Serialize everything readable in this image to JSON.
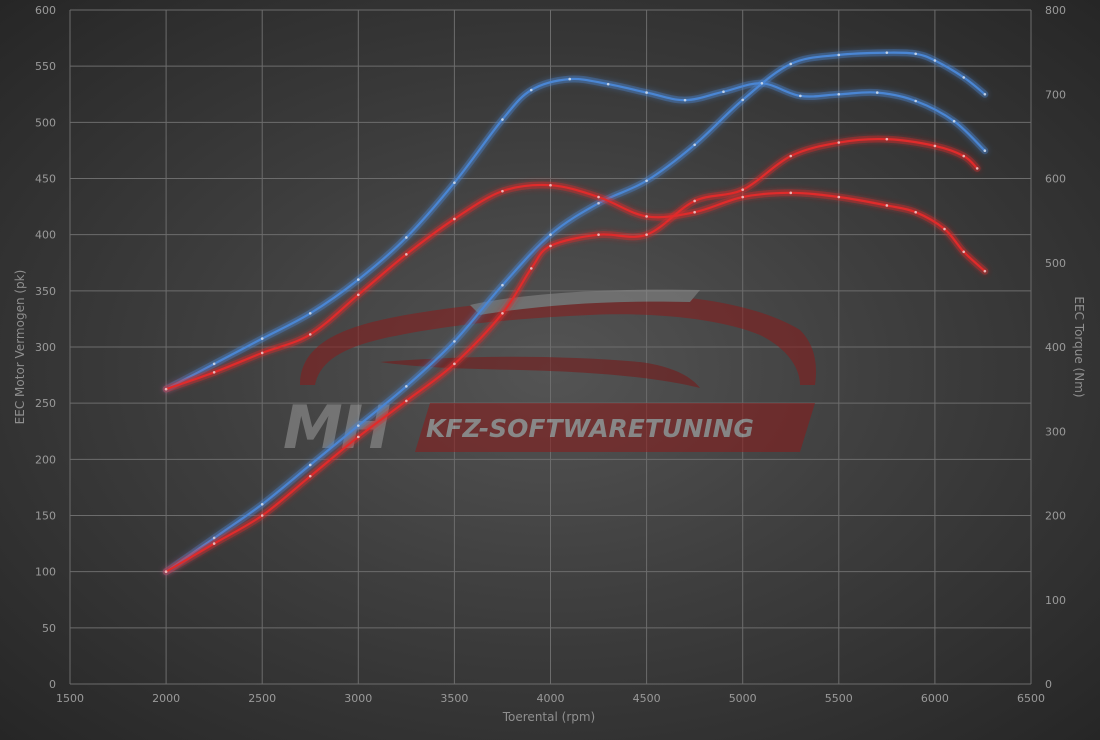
{
  "chart_data": {
    "type": "line",
    "xlabel": "Toerental (rpm)",
    "ylabel_left": "EEC Motor Vermogen (pk)",
    "ylabel_right": "EEC Torque (Nm)",
    "xlim": [
      1500,
      6500
    ],
    "ylim_left": [
      0,
      600
    ],
    "ylim_right": [
      0,
      800
    ],
    "x_ticks": [
      1500,
      2000,
      2500,
      3000,
      3500,
      4000,
      4500,
      5000,
      5500,
      6000,
      6500
    ],
    "y_left_ticks": [
      0,
      50,
      100,
      150,
      200,
      250,
      300,
      350,
      400,
      450,
      500,
      550,
      600
    ],
    "y_right_ticks": [
      0,
      100,
      200,
      300,
      400,
      500,
      600,
      700,
      800
    ],
    "grid": true,
    "series": [
      {
        "axis": "left",
        "color": "#4a86d4",
        "points": [
          [
            2000,
            100
          ],
          [
            2250,
            130
          ],
          [
            2500,
            160
          ],
          [
            2750,
            195
          ],
          [
            3000,
            230
          ],
          [
            3250,
            265
          ],
          [
            3500,
            305
          ],
          [
            3750,
            355
          ],
          [
            4000,
            400
          ],
          [
            4250,
            428
          ],
          [
            4500,
            448
          ],
          [
            4750,
            480
          ],
          [
            5000,
            520
          ],
          [
            5250,
            552
          ],
          [
            5500,
            560
          ],
          [
            5750,
            562
          ],
          [
            5900,
            561
          ],
          [
            6000,
            555
          ],
          [
            6150,
            540
          ],
          [
            6260,
            525
          ]
        ]
      },
      {
        "axis": "right",
        "color": "#4a86d4",
        "points": [
          [
            2000,
            350
          ],
          [
            2250,
            380
          ],
          [
            2500,
            410
          ],
          [
            2750,
            440
          ],
          [
            3000,
            480
          ],
          [
            3250,
            530
          ],
          [
            3500,
            595
          ],
          [
            3750,
            670
          ],
          [
            3900,
            705
          ],
          [
            4100,
            718
          ],
          [
            4300,
            712
          ],
          [
            4500,
            702
          ],
          [
            4700,
            693
          ],
          [
            4900,
            703
          ],
          [
            5100,
            713
          ],
          [
            5300,
            698
          ],
          [
            5500,
            700
          ],
          [
            5700,
            702
          ],
          [
            5900,
            692
          ],
          [
            6100,
            668
          ],
          [
            6260,
            633
          ]
        ]
      },
      {
        "axis": "left",
        "color": "#e02b2b",
        "points": [
          [
            2000,
            100
          ],
          [
            2250,
            125
          ],
          [
            2500,
            150
          ],
          [
            2750,
            185
          ],
          [
            3000,
            220
          ],
          [
            3250,
            252
          ],
          [
            3500,
            285
          ],
          [
            3750,
            330
          ],
          [
            3900,
            370
          ],
          [
            4000,
            390
          ],
          [
            4250,
            400
          ],
          [
            4500,
            400
          ],
          [
            4750,
            430
          ],
          [
            5000,
            440
          ],
          [
            5250,
            470
          ],
          [
            5500,
            482
          ],
          [
            5750,
            485
          ],
          [
            6000,
            479
          ],
          [
            6150,
            470
          ],
          [
            6220,
            459
          ]
        ]
      },
      {
        "axis": "right",
        "color": "#e02b2b",
        "points": [
          [
            2000,
            350
          ],
          [
            2250,
            370
          ],
          [
            2500,
            393
          ],
          [
            2750,
            415
          ],
          [
            3000,
            462
          ],
          [
            3250,
            510
          ],
          [
            3500,
            552
          ],
          [
            3750,
            585
          ],
          [
            4000,
            592
          ],
          [
            4250,
            578
          ],
          [
            4500,
            555
          ],
          [
            4750,
            560
          ],
          [
            5000,
            578
          ],
          [
            5250,
            583
          ],
          [
            5500,
            578
          ],
          [
            5750,
            568
          ],
          [
            5900,
            560
          ],
          [
            6050,
            540
          ],
          [
            6150,
            513
          ],
          [
            6260,
            490
          ]
        ]
      }
    ]
  },
  "logo": {
    "mark": "MH",
    "name": "KFZ-SOFTWARETUNING"
  }
}
